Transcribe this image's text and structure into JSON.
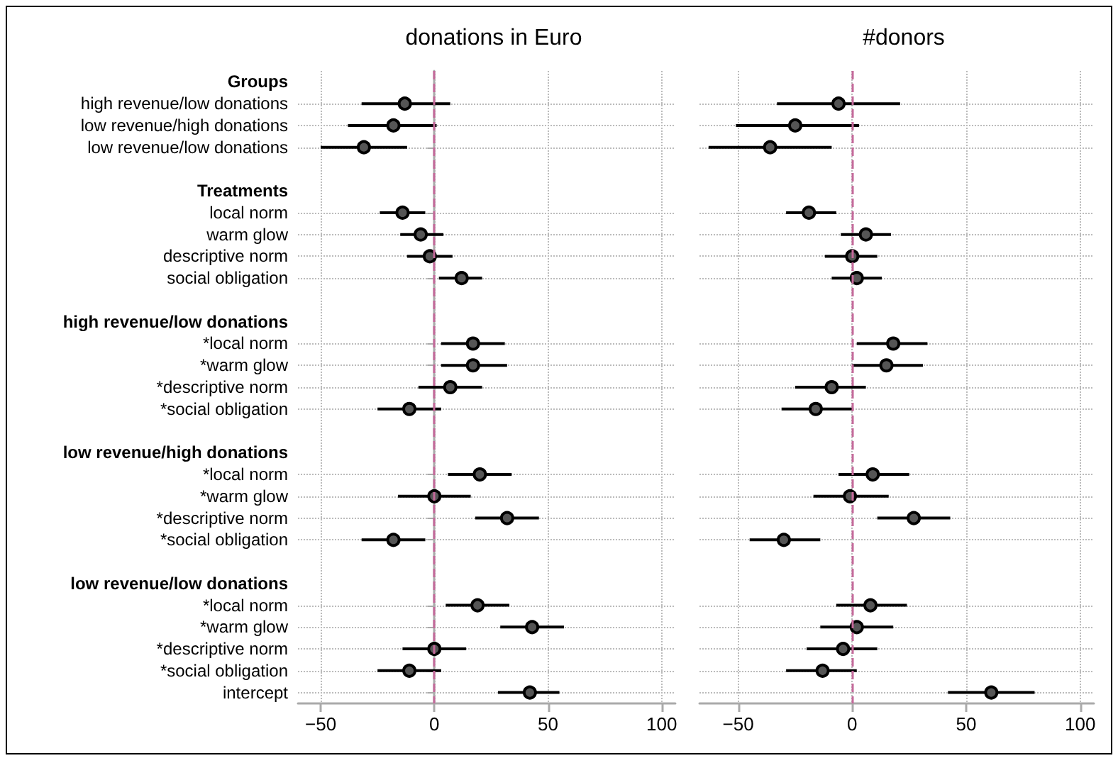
{
  "chart_data": [
    {
      "type": "scatter",
      "orientation": "horizontal",
      "title": "donations in Euro",
      "categories": [
        "Groups",
        "high revenue/low donations",
        "low revenue/high donations",
        "low revenue/low donations",
        null,
        "Treatments",
        "local norm",
        "warm glow",
        "descriptive norm",
        "social obligation",
        null,
        "high revenue/low donations",
        "*local norm",
        "*warm glow",
        "*descriptive norm",
        "*social obligation",
        null,
        "low revenue/high donations",
        "*local norm",
        "*warm glow",
        "*descriptive norm",
        "*social obligation",
        null,
        "low revenue/low donations",
        "*local norm",
        "*warm glow",
        "*descriptive norm",
        "*social obligation",
        "intercept"
      ],
      "values": [
        null,
        -13,
        -18,
        -31,
        null,
        null,
        -14,
        -6,
        -2,
        12,
        null,
        null,
        17,
        17,
        7,
        -11,
        null,
        null,
        20,
        0,
        32,
        -18,
        null,
        null,
        19,
        43,
        0,
        -11,
        42
      ],
      "errors": [
        null,
        [
          -32,
          7
        ],
        [
          -38,
          1
        ],
        [
          -50,
          -12
        ],
        null,
        null,
        [
          -24,
          -4
        ],
        [
          -15,
          4
        ],
        [
          -12,
          8
        ],
        [
          2,
          21
        ],
        null,
        null,
        [
          3,
          31
        ],
        [
          3,
          32
        ],
        [
          -7,
          21
        ],
        [
          -25,
          3
        ],
        null,
        null,
        [
          6,
          34
        ],
        [
          -16,
          16
        ],
        [
          18,
          46
        ],
        [
          -32,
          -4
        ],
        null,
        null,
        [
          5,
          33
        ],
        [
          29,
          57
        ],
        [
          -14,
          14
        ],
        [
          -25,
          3
        ],
        [
          28,
          55
        ]
      ],
      "color": "#000000",
      "marker": "circle",
      "xlim": [
        -60,
        106
      ],
      "xticks": [
        -50,
        0,
        50,
        100
      ],
      "grid": true,
      "ref_lines": [
        {
          "axis": "x",
          "value": 0,
          "color": "#c4699a",
          "line_style": "dashed"
        }
      ]
    },
    {
      "type": "scatter",
      "orientation": "horizontal",
      "title": "#donors",
      "categories": [
        null,
        null,
        null,
        null,
        null,
        null,
        null,
        null,
        null,
        null,
        null,
        null,
        null,
        null,
        null,
        null,
        null,
        null,
        null,
        null,
        null,
        null,
        null,
        null,
        null,
        null,
        null,
        null,
        null
      ],
      "values": [
        null,
        -6,
        -25,
        -36,
        null,
        null,
        -19,
        6,
        0,
        2,
        null,
        null,
        18,
        15,
        -9,
        -16,
        null,
        null,
        9,
        -1,
        27,
        -30,
        null,
        null,
        8,
        2,
        -4,
        -13,
        61
      ],
      "errors": [
        null,
        [
          -33,
          21
        ],
        [
          -51,
          3
        ],
        [
          -63,
          -9
        ],
        null,
        null,
        [
          -29,
          -7
        ],
        [
          -5,
          17
        ],
        [
          -12,
          11
        ],
        [
          -9,
          13
        ],
        null,
        null,
        [
          2,
          33
        ],
        [
          0,
          31
        ],
        [
          -25,
          6
        ],
        [
          -31,
          0
        ],
        null,
        null,
        [
          -6,
          25
        ],
        [
          -17,
          16
        ],
        [
          11,
          43
        ],
        [
          -45,
          -14
        ],
        null,
        null,
        [
          -7,
          24
        ],
        [
          -14,
          18
        ],
        [
          -20,
          11
        ],
        [
          -29,
          2
        ],
        [
          42,
          80
        ]
      ],
      "color": "#000000",
      "marker": "circle",
      "xlim": [
        -67,
        106
      ],
      "xticks": [
        -50,
        0,
        50,
        100
      ],
      "grid": true,
      "tick_labels": "x",
      "ref_lines": [
        {
          "axis": "x",
          "value": 0,
          "color": "#c4699a",
          "line_style": "dashed"
        }
      ]
    }
  ]
}
